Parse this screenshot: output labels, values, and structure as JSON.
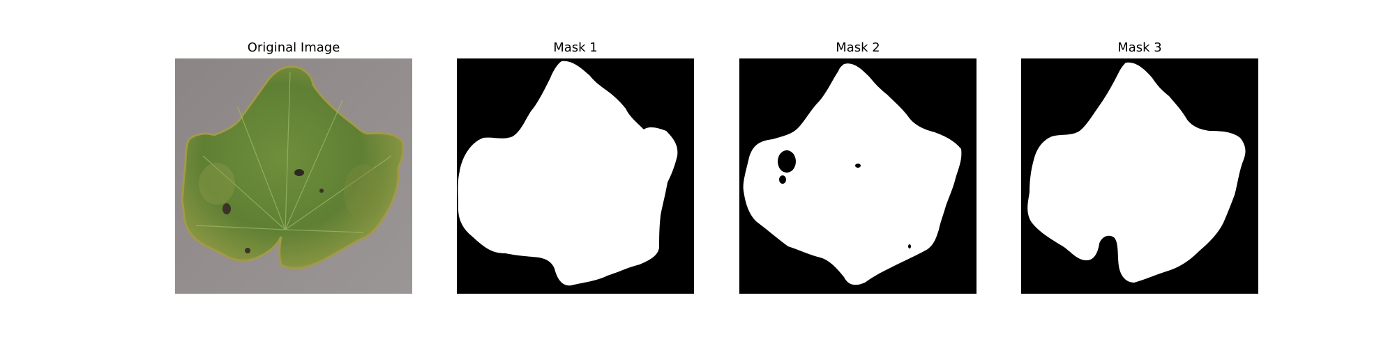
{
  "figure": {
    "panels": [
      {
        "title": "Original Image"
      },
      {
        "title": "Mask 1"
      },
      {
        "title": "Mask 2"
      },
      {
        "title": "Mask 3"
      }
    ]
  },
  "colors": {
    "background": "#ffffff",
    "mask_background": "#000000",
    "mask_foreground": "#ffffff",
    "leaf_green": "#6d8a3e",
    "leaf_yellow": "#a9a24a",
    "leaf_background": "#8a8585"
  }
}
